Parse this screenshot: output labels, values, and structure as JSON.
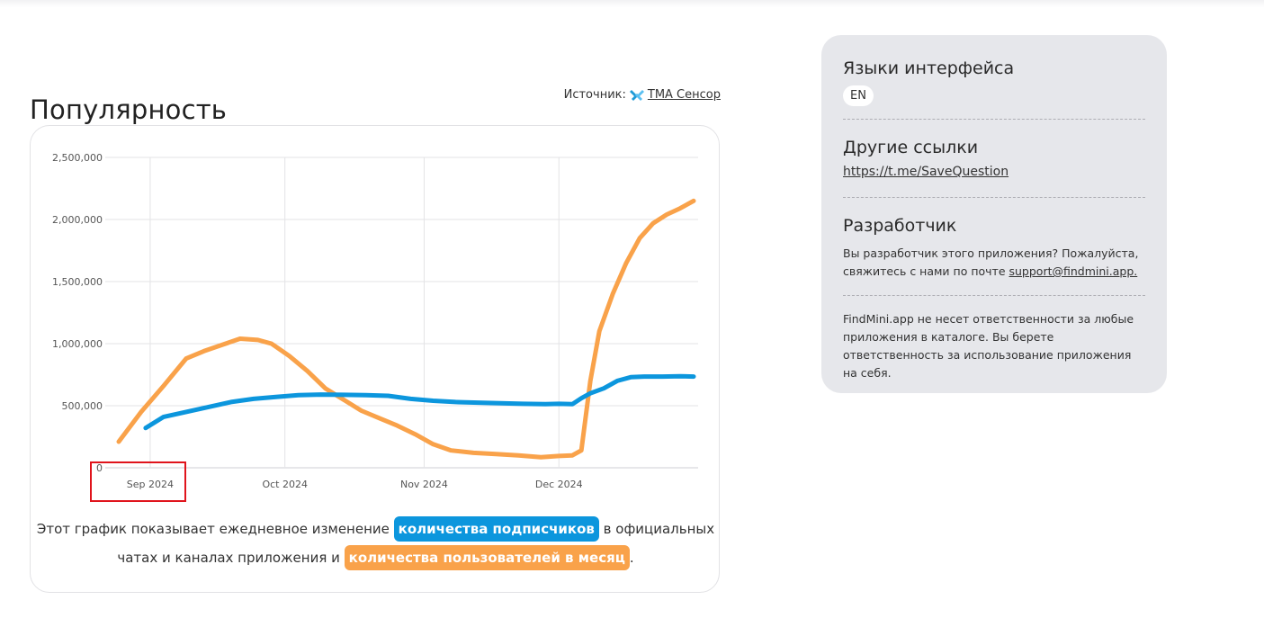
{
  "section_title": "Популярность",
  "source": {
    "label": "Источник:",
    "link_text": "TMA Сенсор"
  },
  "chart_data": {
    "type": "line",
    "x_tick_labels": [
      "Sep 2024",
      "Oct 2024",
      "Nov 2024",
      "Dec 2024"
    ],
    "y_tick_labels": [
      "0",
      "500,000",
      "1,000,000",
      "1,500,000",
      "2,000,000",
      "2,500,000"
    ],
    "ylim": [
      0,
      2500000
    ],
    "grid": true,
    "series": [
      {
        "color": "#f9a24a",
        "points": [
          [
            "2024-08-25",
            210000
          ],
          [
            "2024-08-30",
            450000
          ],
          [
            "2024-09-04",
            660000
          ],
          [
            "2024-09-09",
            880000
          ],
          [
            "2024-09-13",
            940000
          ],
          [
            "2024-09-17",
            990000
          ],
          [
            "2024-09-21",
            1040000
          ],
          [
            "2024-09-25",
            1030000
          ],
          [
            "2024-09-28",
            1000000
          ],
          [
            "2024-10-02",
            900000
          ],
          [
            "2024-10-06",
            780000
          ],
          [
            "2024-10-10",
            640000
          ],
          [
            "2024-10-14",
            550000
          ],
          [
            "2024-10-18",
            460000
          ],
          [
            "2024-10-22",
            400000
          ],
          [
            "2024-10-26",
            340000
          ],
          [
            "2024-10-30",
            270000
          ],
          [
            "2024-11-03",
            190000
          ],
          [
            "2024-11-07",
            140000
          ],
          [
            "2024-11-12",
            120000
          ],
          [
            "2024-11-17",
            110000
          ],
          [
            "2024-11-22",
            100000
          ],
          [
            "2024-11-27",
            85000
          ],
          [
            "2024-12-01",
            95000
          ],
          [
            "2024-12-04",
            100000
          ],
          [
            "2024-12-06",
            140000
          ],
          [
            "2024-12-08",
            700000
          ],
          [
            "2024-12-10",
            1100000
          ],
          [
            "2024-12-13",
            1400000
          ],
          [
            "2024-12-16",
            1650000
          ],
          [
            "2024-12-19",
            1850000
          ],
          [
            "2024-12-22",
            1970000
          ],
          [
            "2024-12-25",
            2040000
          ],
          [
            "2024-12-28",
            2090000
          ],
          [
            "2024-12-31",
            2150000
          ]
        ]
      },
      {
        "color": "#0c96dd",
        "points": [
          [
            "2024-08-31",
            320000
          ],
          [
            "2024-09-04",
            410000
          ],
          [
            "2024-09-09",
            450000
          ],
          [
            "2024-09-14",
            490000
          ],
          [
            "2024-09-19",
            530000
          ],
          [
            "2024-09-24",
            555000
          ],
          [
            "2024-09-29",
            570000
          ],
          [
            "2024-10-04",
            585000
          ],
          [
            "2024-10-09",
            590000
          ],
          [
            "2024-10-14",
            588000
          ],
          [
            "2024-10-19",
            585000
          ],
          [
            "2024-10-24",
            580000
          ],
          [
            "2024-10-29",
            555000
          ],
          [
            "2024-11-03",
            540000
          ],
          [
            "2024-11-08",
            530000
          ],
          [
            "2024-11-13",
            525000
          ],
          [
            "2024-11-18",
            520000
          ],
          [
            "2024-11-23",
            515000
          ],
          [
            "2024-11-28",
            512000
          ],
          [
            "2024-12-01",
            515000
          ],
          [
            "2024-12-04",
            512000
          ],
          [
            "2024-12-06",
            560000
          ],
          [
            "2024-12-08",
            600000
          ],
          [
            "2024-12-11",
            640000
          ],
          [
            "2024-12-14",
            700000
          ],
          [
            "2024-12-17",
            730000
          ],
          [
            "2024-12-20",
            735000
          ],
          [
            "2024-12-24",
            735000
          ],
          [
            "2024-12-28",
            738000
          ],
          [
            "2024-12-31",
            735000
          ]
        ]
      }
    ]
  },
  "caption": {
    "before": "Этот график показывает ежедневное изменение",
    "pill_subscribers": "количества подписчиков",
    "middle": "в официальных чатах и каналах приложения и",
    "pill_users": "количества пользователей в месяц",
    "after": "."
  },
  "side": {
    "languages_title": "Языки интерфейса",
    "language_chip": "EN",
    "links_title": "Другие ссылки",
    "link_url": "https://t.me/SaveQuestion",
    "developer_title": "Разработчик",
    "developer_text": "Вы разработчик этого приложения? Пожалуйста, свяжитесь с нами по почте",
    "developer_email": "support@findmini.app.",
    "disclaimer": "FindMini.app не несет ответственности за любые приложения в каталоге. Вы берете ответственность за использование приложения на себя."
  }
}
